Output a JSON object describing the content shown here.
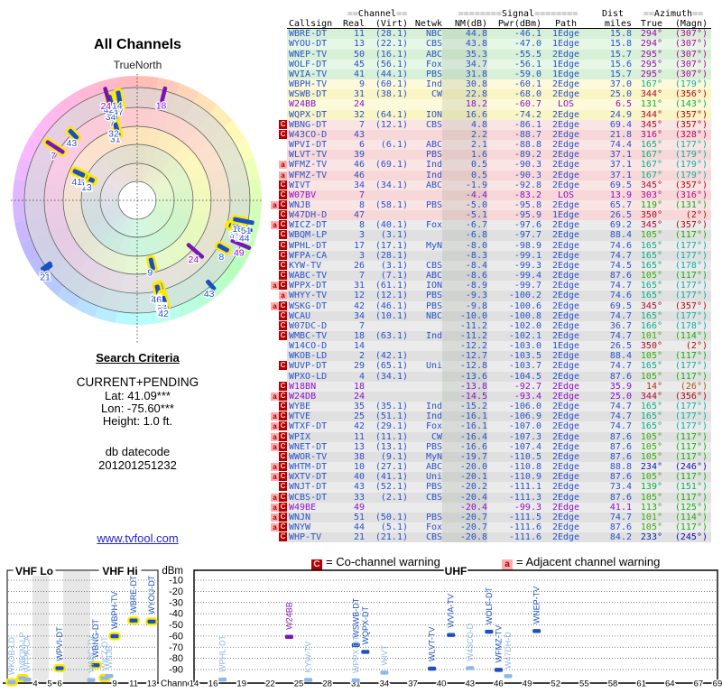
{
  "radar": {
    "title": "All Channels",
    "north_label": "TrueNorth"
  },
  "criteria": {
    "heading": "Search Criteria",
    "mode": "CURRENT+PENDING",
    "lat": "Lat: 41.09***",
    "lon": "Lon: -75.60***",
    "height": "Height: 1.0 ft.",
    "datecode_label": "db datecode",
    "datecode": "201201251232"
  },
  "link": "www.tvfool.com",
  "legend": {
    "co": {
      "symbol": "C",
      "text": "= Co-channel warning"
    },
    "adj": {
      "symbol": "a",
      "text": "= Adjacent channel warning"
    }
  },
  "table": {
    "group_headers": {
      "channel": "==Channel==",
      "signal": "========Signal========",
      "dist": "Dist",
      "azimuth": "==Azimuth=="
    },
    "columns": {
      "callsign": "Callsign",
      "real": "Real",
      "virt": "(Virt)",
      "netwk": "Netwk",
      "nm": "NM(dB)",
      "pwr": "Pwr(dBm)",
      "path": "Path",
      "miles": "miles",
      "true": "True",
      "magn": "(Magn)"
    },
    "rows": [
      [
        "WBRE-DT",
        11,
        "(28.1)",
        "NBC",
        "44.8",
        "-46.1",
        "1Edge",
        "15.8",
        294,
        307,
        "",
        "b",
        "g"
      ],
      [
        "WYOU-DT",
        13,
        "(22.1)",
        "CBS",
        "43.8",
        "-47.0",
        "1Edge",
        "15.8",
        294,
        307,
        "",
        "b",
        "g"
      ],
      [
        "WNEP-TV",
        50,
        "(16.1)",
        "ABC",
        "35.3",
        "-55.5",
        "2Edge",
        "15.7",
        295,
        307,
        "",
        "b",
        "g"
      ],
      [
        "WOLF-DT",
        45,
        "(56.1)",
        "Fox",
        "34.7",
        "-56.1",
        "1Edge",
        "15.6",
        295,
        307,
        "",
        "b",
        "g"
      ],
      [
        "WVIA-TV",
        41,
        "(44.1)",
        "PBS",
        "31.8",
        "-59.0",
        "1Edge",
        "15.7",
        295,
        307,
        "",
        "b",
        "g"
      ],
      [
        "WBPH-TV",
        9,
        "(60.1)",
        "Ind",
        "30.8",
        "-60.1",
        "2Edge",
        "37.0",
        167,
        179,
        "",
        "b",
        "y"
      ],
      [
        "WSWB-DT",
        31,
        "(38.1)",
        "CW",
        "22.8",
        "-68.0",
        "2Edge",
        "25.0",
        344,
        356,
        "",
        "b",
        "y"
      ],
      [
        "W24BB",
        24,
        "",
        "",
        "18.2",
        "-60.7",
        "LOS",
        "6.5",
        131,
        143,
        "",
        "p",
        "y"
      ],
      [
        "WQPX-DT",
        32,
        "(64.1)",
        "ION",
        "16.6",
        "-74.2",
        "2Edge",
        "24.9",
        344,
        357,
        "",
        "b",
        "y"
      ],
      [
        "WBNG-DT",
        7,
        "(12.1)",
        "CBS",
        "4.8",
        "-86.1",
        "2Edge",
        "69.4",
        345,
        357,
        "C",
        "b",
        "r"
      ],
      [
        "W43CO-D",
        43,
        "",
        "",
        "2.2",
        "-88.7",
        "2Edge",
        "21.8",
        316,
        328,
        "C",
        "b",
        "r"
      ],
      [
        "WPVI-DT",
        6,
        "(6.1)",
        "ABC",
        "2.1",
        "-88.8",
        "2Edge",
        "74.4",
        165,
        177,
        "",
        "b",
        "r"
      ],
      [
        "WLVT-TV",
        39,
        "",
        "PBS",
        "1.6",
        "-89.2",
        "2Edge",
        "37.1",
        167,
        179,
        "",
        "b",
        "r"
      ],
      [
        "WFMZ-TV",
        46,
        "(69.1)",
        "Ind",
        "0.5",
        "-90.3",
        "2Edge",
        "37.1",
        167,
        179,
        "a",
        "b",
        "r"
      ],
      [
        "WFMZ-TV",
        46,
        "",
        "Ind",
        "0.5",
        "-90.3",
        "2Edge",
        "37.1",
        167,
        179,
        "a",
        "b",
        "r"
      ],
      [
        "WIVT",
        34,
        "(34.1)",
        "ABC",
        "-1.9",
        "-92.8",
        "2Edge",
        "69.5",
        345,
        357,
        "C",
        "b",
        "r"
      ],
      [
        "W07BV",
        7,
        "",
        "",
        "-4.4",
        "-83.2",
        "LOS",
        "13.9",
        303,
        316,
        "C",
        "p",
        "r"
      ],
      [
        "WNJB",
        8,
        "(58.1)",
        "PBS",
        "-5.0",
        "-95.8",
        "2Edge",
        "65.7",
        119,
        131,
        "aC",
        "b",
        "r"
      ],
      [
        "W47DH-D",
        47,
        "",
        "",
        "-5.1",
        "-95.9",
        "1Edge",
        "26.5",
        350,
        2,
        "C",
        "b",
        "r"
      ],
      [
        "WICZ-DT",
        8,
        "(40.1)",
        "Fox",
        "-6.7",
        "-97.6",
        "2Edge",
        "69.2",
        345,
        357,
        "aC",
        "b",
        "e"
      ],
      [
        "WBQM-LP",
        3,
        "(3.1)",
        "",
        "-6.8",
        "-97.7",
        "2Edge",
        "88.4",
        105,
        117,
        "C",
        "b",
        "e"
      ],
      [
        "WPHL-DT",
        17,
        "(17.1)",
        "MyN",
        "-8.0",
        "-98.9",
        "2Edge",
        "74.6",
        165,
        177,
        "C",
        "b",
        "e"
      ],
      [
        "WFPA-CA",
        3,
        "(28.1)",
        "",
        "-8.3",
        "-99.1",
        "2Edge",
        "74.7",
        165,
        177,
        "C",
        "b",
        "e"
      ],
      [
        "KYW-TV",
        26,
        "(3.1)",
        "CBS",
        "-8.4",
        "-99.3",
        "2Edge",
        "74.5",
        165,
        178,
        "C",
        "b",
        "e"
      ],
      [
        "WABC-TV",
        7,
        "(7.1)",
        "ABC",
        "-8.6",
        "-99.4",
        "2Edge",
        "87.6",
        105,
        117,
        "C",
        "b",
        "e"
      ],
      [
        "WPPX-DT",
        31,
        "(61.1)",
        "ION",
        "-8.9",
        "-99.7",
        "2Edge",
        "74.7",
        165,
        177,
        "aC",
        "b",
        "e"
      ],
      [
        "WHYY-TV",
        12,
        "(12.1)",
        "PBS",
        "-9.3",
        "-100.2",
        "2Edge",
        "74.6",
        165,
        177,
        "a",
        "b",
        "e"
      ],
      [
        "WSKG-DT",
        42,
        "(46.1)",
        "PBS",
        "-9.8",
        "-100.6",
        "2Edge",
        "69.5",
        345,
        357,
        "aC",
        "b",
        "e"
      ],
      [
        "WCAU",
        34,
        "(10.1)",
        "NBC",
        "-10.0",
        "-100.8",
        "2Edge",
        "74.7",
        165,
        177,
        "C",
        "b",
        "e"
      ],
      [
        "W07DC-D",
        7,
        "",
        "",
        "-11.2",
        "-102.0",
        "2Edge",
        "36.7",
        166,
        178,
        "C",
        "b",
        "e"
      ],
      [
        "WMBC-TV",
        18,
        "(63.1)",
        "Ind",
        "-11.2",
        "-102.1",
        "2Edge",
        "74.7",
        101,
        114,
        "C",
        "b",
        "e"
      ],
      [
        "W14CO-D",
        14,
        "",
        "",
        "-12.2",
        "-103.0",
        "1Edge",
        "26.5",
        350,
        2,
        "",
        "b",
        "e"
      ],
      [
        "WKOB-LD",
        2,
        "(42.1)",
        "",
        "-12.7",
        "-103.5",
        "2Edge",
        "88.4",
        105,
        117,
        "",
        "b",
        "e"
      ],
      [
        "WUVP-DT",
        29,
        "(65.1)",
        "Uni",
        "-12.8",
        "-103.7",
        "2Edge",
        "74.7",
        165,
        177,
        "C",
        "b",
        "e"
      ],
      [
        "WPXO-LD",
        4,
        "(34.1)",
        "",
        "-13.6",
        "-104.5",
        "2Edge",
        "87.6",
        105,
        117,
        "",
        "b",
        "e"
      ],
      [
        "W18BN",
        18,
        "",
        "",
        "-13.8",
        "-92.7",
        "2Edge",
        "35.9",
        14,
        26,
        "C",
        "p",
        "e"
      ],
      [
        "W24DB",
        24,
        "",
        "",
        "-14.5",
        "-93.4",
        "2Edge",
        "25.0",
        344,
        356,
        "aC",
        "p",
        "e"
      ],
      [
        "WYBE",
        35,
        "(35.1)",
        "Ind",
        "-15.2",
        "-106.0",
        "2Edge",
        "74.7",
        165,
        177,
        "C",
        "b",
        "e"
      ],
      [
        "WTVE",
        25,
        "(51.1)",
        "Ind",
        "-16.1",
        "-106.9",
        "2Edge",
        "74.7",
        165,
        177,
        "aC",
        "b",
        "e"
      ],
      [
        "WTXF-DT",
        42,
        "(29.1)",
        "Fox",
        "-16.1",
        "-107.0",
        "2Edge",
        "74.7",
        165,
        177,
        "aC",
        "b",
        "e"
      ],
      [
        "WPIX",
        11,
        "(11.1)",
        "CW",
        "-16.4",
        "-107.3",
        "2Edge",
        "87.6",
        105,
        117,
        "aC",
        "b",
        "e"
      ],
      [
        "WNET-DT",
        13,
        "(13.1)",
        "PBS",
        "-16.6",
        "-107.4",
        "2Edge",
        "87.6",
        105,
        117,
        "aC",
        "b",
        "e"
      ],
      [
        "WWOR-TV",
        38,
        "(9.1)",
        "MyN",
        "-19.7",
        "-110.5",
        "2Edge",
        "87.6",
        105,
        117,
        "C",
        "b",
        "e"
      ],
      [
        "WHTM-DT",
        10,
        "(27.1)",
        "ABC",
        "-20.0",
        "-110.8",
        "2Edge",
        "88.8",
        234,
        246,
        "aC",
        "b",
        "e"
      ],
      [
        "WXTV-DT",
        40,
        "(41.1)",
        "Uni",
        "-20.1",
        "-110.9",
        "2Edge",
        "87.6",
        105,
        117,
        "aC",
        "b",
        "e"
      ],
      [
        "WNJT-DT",
        43,
        "(52.1)",
        "PBS",
        "-20.2",
        "-111.1",
        "2Edge",
        "73.4",
        139,
        151,
        "C",
        "b",
        "e"
      ],
      [
        "WCBS-DT",
        33,
        "(2.1)",
        "CBS",
        "-20.4",
        "-111.3",
        "2Edge",
        "87.6",
        105,
        117,
        "aC",
        "b",
        "e"
      ],
      [
        "W49BE",
        49,
        "",
        "",
        "-20.4",
        "-99.3",
        "2Edge",
        "41.1",
        113,
        125,
        "aC",
        "p",
        "e"
      ],
      [
        "WNJN",
        51,
        "(50.1)",
        "PBS",
        "-20.7",
        "-111.5",
        "2Edge",
        "74.7",
        101,
        114,
        "aC",
        "b",
        "e"
      ],
      [
        "WNYW",
        44,
        "(5.1)",
        "Fox",
        "-20.7",
        "-111.6",
        "2Edge",
        "87.6",
        105,
        117,
        "aC",
        "b",
        "e"
      ],
      [
        "WHP-TV",
        21,
        "(21.1)",
        "CBS",
        "-20.8",
        "-111.6",
        "2Edge",
        "84.2",
        233,
        245,
        "C",
        "b",
        "e"
      ]
    ]
  },
  "chart_data": [
    {
      "id": "radar-polar",
      "type": "scatter",
      "title": "All Channels",
      "north_label": "TrueNorth",
      "angle": "azimuth True (deg, 0 = north)",
      "radius": "noise margin NM(dB); stronger signal plots closer to center",
      "labels": "real channel numbers",
      "points_source": "table.rows"
    },
    {
      "id": "vhf",
      "type": "bar",
      "section_labels": [
        "VHF Lo",
        "VHF Hi"
      ],
      "ylabel": "dBm",
      "xlabel": "Channel",
      "ylim": [
        -99,
        -5
      ],
      "yticks": [
        -10,
        -20,
        -30,
        -40,
        -50,
        -60,
        -70,
        -80,
        -90
      ],
      "xticks": [
        2,
        4,
        5,
        6,
        9,
        11,
        13
      ],
      "bars": [
        {
          "ch": 2,
          "callsign": "WKOB-LD",
          "pwr_dbm": -103.5,
          "tone": "light",
          "outline": true
        },
        {
          "ch": 3,
          "callsign": "WBQM-LP",
          "pwr_dbm": -97.7,
          "tone": "light",
          "outline": true
        },
        {
          "ch": 3,
          "callsign": "WFPA-CA",
          "pwr_dbm": -99.1,
          "tone": "light",
          "outline": false
        },
        {
          "ch": 6,
          "callsign": "WPVI-DT",
          "pwr_dbm": -88.8,
          "tone": "dark",
          "outline": true
        },
        {
          "ch": 7,
          "callsign": "WBNG-DT",
          "pwr_dbm": -86.1,
          "tone": "dark",
          "outline": true
        },
        {
          "ch": 7,
          "callsign": "WABC-TV",
          "pwr_dbm": -99.4,
          "tone": "light",
          "outline": false
        },
        {
          "ch": 8,
          "callsign": "WICZ-DT",
          "pwr_dbm": -97.6,
          "tone": "light",
          "outline": true
        },
        {
          "ch": 8,
          "callsign": "WNJB",
          "pwr_dbm": -95.8,
          "tone": "light",
          "outline": false
        },
        {
          "ch": 9,
          "callsign": "WBPH-TV",
          "pwr_dbm": -60.1,
          "tone": "dark",
          "outline": true
        },
        {
          "ch": 11,
          "callsign": "WBRE-DT",
          "pwr_dbm": -46.1,
          "tone": "dark",
          "outline": true
        },
        {
          "ch": 13,
          "callsign": "WYOU-DT",
          "pwr_dbm": -47.0,
          "tone": "dark",
          "outline": true
        }
      ]
    },
    {
      "id": "uhf",
      "type": "bar",
      "title": "UHF",
      "yticks": [
        -10,
        -20,
        -30,
        -40,
        -50,
        -60,
        -70,
        -80,
        -90
      ],
      "xticks": [
        14,
        16,
        19,
        22,
        25,
        28,
        31,
        34,
        37,
        40,
        43,
        46,
        49,
        52,
        55,
        58,
        61,
        64,
        67,
        69
      ],
      "bars": [
        {
          "ch": 17,
          "callsign": "WPHL-DT",
          "pwr_dbm": -98.9,
          "tone": "light",
          "outline": false
        },
        {
          "ch": 24,
          "callsign": "W24BB",
          "pwr_dbm": -60.7,
          "tone": "purple",
          "outline": false
        },
        {
          "ch": 26,
          "callsign": "KYW-TV",
          "pwr_dbm": -99.3,
          "tone": "light",
          "outline": false
        },
        {
          "ch": 31,
          "callsign": "WSWB-DT",
          "pwr_dbm": -68.0,
          "tone": "dark",
          "outline": false
        },
        {
          "ch": 31,
          "callsign": "WPPX-DT",
          "pwr_dbm": -99.7,
          "tone": "light",
          "outline": false
        },
        {
          "ch": 32,
          "callsign": "WQPX-DT",
          "pwr_dbm": -74.2,
          "tone": "dark",
          "outline": false
        },
        {
          "ch": 34,
          "callsign": "WIVT",
          "pwr_dbm": -92.8,
          "tone": "light",
          "outline": false
        },
        {
          "ch": 39,
          "callsign": "WLVT-TV",
          "pwr_dbm": -89.2,
          "tone": "dark",
          "outline": false
        },
        {
          "ch": 41,
          "callsign": "WVIA-TV",
          "pwr_dbm": -59.0,
          "tone": "dark",
          "outline": false
        },
        {
          "ch": 43,
          "callsign": "W43CO-D",
          "pwr_dbm": -88.7,
          "tone": "light",
          "outline": false
        },
        {
          "ch": 45,
          "callsign": "WOLF-DT",
          "pwr_dbm": -56.1,
          "tone": "dark",
          "outline": false
        },
        {
          "ch": 46,
          "callsign": "WFMZ-TV",
          "pwr_dbm": -90.3,
          "tone": "dark",
          "outline": false
        },
        {
          "ch": 47,
          "callsign": "W47DH-D",
          "pwr_dbm": -95.9,
          "tone": "light",
          "outline": false
        },
        {
          "ch": 50,
          "callsign": "WNEP-TV",
          "pwr_dbm": -55.5,
          "tone": "dark",
          "outline": false
        }
      ]
    }
  ],
  "colors": {
    "text_blue": "#2952cc",
    "text_purple": "#8a11cc",
    "bar_dark": "#1b50c0",
    "bar_light": "#8fb8e8",
    "bar_purple": "#7a15b5",
    "warn_red": "#b40000",
    "warn_pink": "#ffabab",
    "link": "#2222cc",
    "highlight_yellow": "#ffe800",
    "tier_green": "#d7f0d7",
    "tier_yellow": "#faf5c4",
    "tier_pink": "#f7d7d7",
    "tier_gray": "#e0e0e0"
  }
}
